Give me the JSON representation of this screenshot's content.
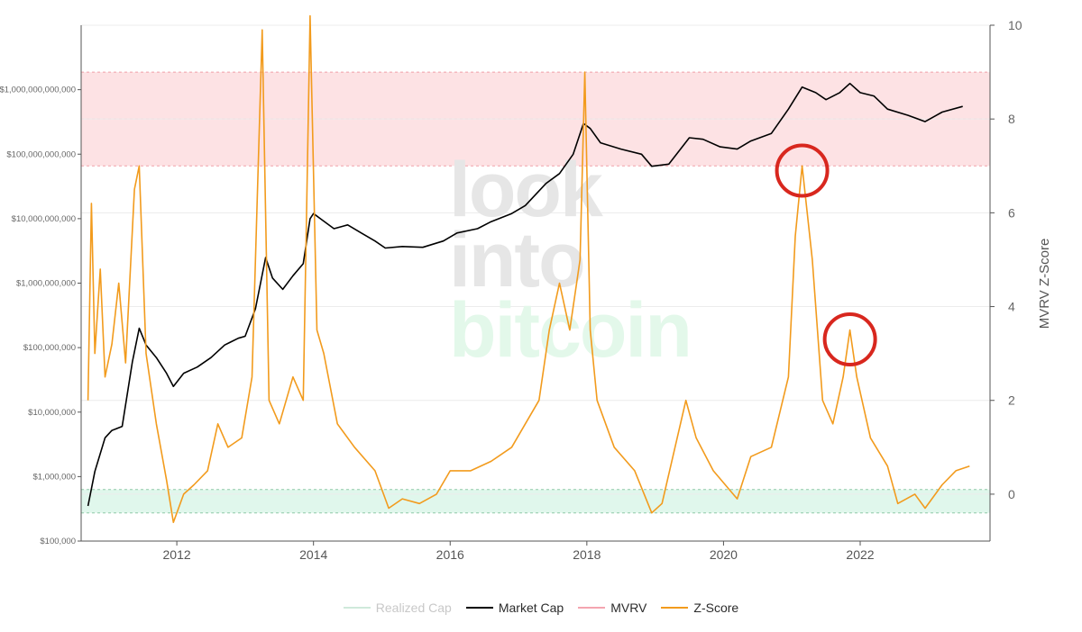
{
  "chart_data": {
    "type": "line",
    "title": "",
    "xlabel": "",
    "ylabel_left": "",
    "ylabel_right": "MVRV Z-Score",
    "x_range": [
      2010.6,
      2023.9
    ],
    "x_ticks": [
      2012,
      2014,
      2016,
      2018,
      2020,
      2022
    ],
    "y_left": {
      "scale": "log",
      "range": [
        100000,
        10000000000000
      ]
    },
    "y_left_ticks": [
      {
        "value": 100000,
        "label": "$100,000"
      },
      {
        "value": 1000000,
        "label": "$1,000,000"
      },
      {
        "value": 10000000,
        "label": "$10,000,000"
      },
      {
        "value": 100000000,
        "label": "$100,000,000"
      },
      {
        "value": 1000000000,
        "label": "$1,000,000,000"
      },
      {
        "value": 10000000000,
        "label": "$10,000,000,000"
      },
      {
        "value": 100000000000,
        "label": "$100,000,000,000"
      },
      {
        "value": 1000000000000,
        "label": "$1,000,000,000,000"
      }
    ],
    "y_right": {
      "scale": "linear",
      "range": [
        -1,
        10
      ]
    },
    "y_right_ticks": [
      0,
      2,
      4,
      6,
      8,
      10
    ],
    "bands": [
      {
        "name": "overvalued",
        "from": 7,
        "to": 9,
        "color": "#fde2e4",
        "border": "#f0a0a8"
      },
      {
        "name": "undervalued",
        "from": -0.4,
        "to": 0.1,
        "color": "#e0f7ec",
        "border": "#8fc9a8"
      }
    ],
    "grid": true,
    "legend_position": "bottom-center",
    "watermark": [
      "look",
      "into",
      "bitcoin"
    ],
    "annotations": [
      {
        "type": "circle",
        "x": 2021.15,
        "y": 6.9
      },
      {
        "type": "circle",
        "x": 2021.85,
        "y": 3.3
      }
    ],
    "series": [
      {
        "name": "Market Cap",
        "color": "#000000",
        "axis": "left",
        "points": [
          [
            2010.7,
            350000
          ],
          [
            2010.8,
            1200000
          ],
          [
            2010.95,
            4000000
          ],
          [
            2011.05,
            5200000
          ],
          [
            2011.2,
            6000000
          ],
          [
            2011.35,
            60000000
          ],
          [
            2011.45,
            200000000
          ],
          [
            2011.55,
            110000000
          ],
          [
            2011.7,
            70000000
          ],
          [
            2011.85,
            40000000
          ],
          [
            2011.95,
            25000000
          ],
          [
            2012.1,
            40000000
          ],
          [
            2012.3,
            50000000
          ],
          [
            2012.5,
            70000000
          ],
          [
            2012.7,
            110000000
          ],
          [
            2012.9,
            140000000
          ],
          [
            2013.0,
            150000000
          ],
          [
            2013.15,
            400000000
          ],
          [
            2013.3,
            2500000000
          ],
          [
            2013.4,
            1200000000
          ],
          [
            2013.55,
            800000000
          ],
          [
            2013.7,
            1300000000
          ],
          [
            2013.85,
            2000000000
          ],
          [
            2013.95,
            10000000000
          ],
          [
            2014.0,
            12000000000
          ],
          [
            2014.1,
            10000000000
          ],
          [
            2014.3,
            7000000000
          ],
          [
            2014.5,
            8000000000
          ],
          [
            2014.7,
            6000000000
          ],
          [
            2014.9,
            4500000000
          ],
          [
            2015.05,
            3500000000
          ],
          [
            2015.3,
            3700000000
          ],
          [
            2015.6,
            3600000000
          ],
          [
            2015.9,
            4500000000
          ],
          [
            2016.1,
            6000000000
          ],
          [
            2016.4,
            7000000000
          ],
          [
            2016.6,
            9000000000
          ],
          [
            2016.9,
            12000000000
          ],
          [
            2017.1,
            16000000000
          ],
          [
            2017.4,
            35000000000
          ],
          [
            2017.6,
            50000000000
          ],
          [
            2017.8,
            100000000000
          ],
          [
            2017.95,
            300000000000
          ],
          [
            2018.05,
            250000000000
          ],
          [
            2018.2,
            150000000000
          ],
          [
            2018.5,
            120000000000
          ],
          [
            2018.8,
            100000000000
          ],
          [
            2018.95,
            65000000000
          ],
          [
            2019.2,
            70000000000
          ],
          [
            2019.5,
            180000000000
          ],
          [
            2019.7,
            170000000000
          ],
          [
            2019.95,
            130000000000
          ],
          [
            2020.2,
            120000000000
          ],
          [
            2020.4,
            160000000000
          ],
          [
            2020.7,
            210000000000
          ],
          [
            2020.95,
            500000000000
          ],
          [
            2021.15,
            1100000000000
          ],
          [
            2021.35,
            900000000000
          ],
          [
            2021.5,
            700000000000
          ],
          [
            2021.7,
            900000000000
          ],
          [
            2021.85,
            1250000000000
          ],
          [
            2022.0,
            900000000000
          ],
          [
            2022.2,
            800000000000
          ],
          [
            2022.4,
            500000000000
          ],
          [
            2022.7,
            400000000000
          ],
          [
            2022.95,
            320000000000
          ],
          [
            2023.2,
            450000000000
          ],
          [
            2023.5,
            550000000000
          ]
        ]
      },
      {
        "name": "Z-Score",
        "color": "#f29b1d",
        "axis": "right",
        "points": [
          [
            2010.7,
            2.0
          ],
          [
            2010.75,
            6.2
          ],
          [
            2010.8,
            3.0
          ],
          [
            2010.88,
            4.8
          ],
          [
            2010.95,
            2.5
          ],
          [
            2011.05,
            3.2
          ],
          [
            2011.15,
            4.5
          ],
          [
            2011.25,
            2.8
          ],
          [
            2011.38,
            6.5
          ],
          [
            2011.45,
            7.0
          ],
          [
            2011.55,
            3.0
          ],
          [
            2011.7,
            1.5
          ],
          [
            2011.85,
            0.3
          ],
          [
            2011.95,
            -0.6
          ],
          [
            2012.1,
            0.0
          ],
          [
            2012.25,
            0.2
          ],
          [
            2012.45,
            0.5
          ],
          [
            2012.6,
            1.5
          ],
          [
            2012.75,
            1.0
          ],
          [
            2012.95,
            1.2
          ],
          [
            2013.1,
            2.5
          ],
          [
            2013.25,
            9.9
          ],
          [
            2013.35,
            2.0
          ],
          [
            2013.5,
            1.5
          ],
          [
            2013.7,
            2.5
          ],
          [
            2013.85,
            2.0
          ],
          [
            2013.95,
            10.2
          ],
          [
            2014.05,
            3.5
          ],
          [
            2014.15,
            3.0
          ],
          [
            2014.35,
            1.5
          ],
          [
            2014.6,
            1.0
          ],
          [
            2014.9,
            0.5
          ],
          [
            2015.1,
            -0.3
          ],
          [
            2015.3,
            -0.1
          ],
          [
            2015.55,
            -0.2
          ],
          [
            2015.8,
            0.0
          ],
          [
            2016.0,
            0.5
          ],
          [
            2016.3,
            0.5
          ],
          [
            2016.6,
            0.7
          ],
          [
            2016.9,
            1.0
          ],
          [
            2017.1,
            1.5
          ],
          [
            2017.3,
            2.0
          ],
          [
            2017.45,
            3.5
          ],
          [
            2017.6,
            4.5
          ],
          [
            2017.75,
            3.5
          ],
          [
            2017.9,
            5.0
          ],
          [
            2017.97,
            9.0
          ],
          [
            2018.05,
            3.5
          ],
          [
            2018.15,
            2.0
          ],
          [
            2018.4,
            1.0
          ],
          [
            2018.7,
            0.5
          ],
          [
            2018.95,
            -0.4
          ],
          [
            2019.1,
            -0.2
          ],
          [
            2019.45,
            2.0
          ],
          [
            2019.6,
            1.2
          ],
          [
            2019.85,
            0.5
          ],
          [
            2020.2,
            -0.1
          ],
          [
            2020.4,
            0.8
          ],
          [
            2020.7,
            1.0
          ],
          [
            2020.95,
            2.5
          ],
          [
            2021.05,
            5.5
          ],
          [
            2021.15,
            7.0
          ],
          [
            2021.3,
            5.0
          ],
          [
            2021.45,
            2.0
          ],
          [
            2021.6,
            1.5
          ],
          [
            2021.75,
            2.5
          ],
          [
            2021.85,
            3.5
          ],
          [
            2021.95,
            2.5
          ],
          [
            2022.15,
            1.2
          ],
          [
            2022.4,
            0.6
          ],
          [
            2022.55,
            -0.2
          ],
          [
            2022.8,
            0.0
          ],
          [
            2022.95,
            -0.3
          ],
          [
            2023.2,
            0.2
          ],
          [
            2023.4,
            0.5
          ],
          [
            2023.6,
            0.6
          ]
        ]
      }
    ],
    "legend": [
      {
        "name": "Realized Cap",
        "color": "#cfe9db",
        "dim": true
      },
      {
        "name": "Market Cap",
        "color": "#000000",
        "dim": false
      },
      {
        "name": "MVRV",
        "color": "#f4a5b0",
        "dim": false
      },
      {
        "name": "Z-Score",
        "color": "#f29b1d",
        "dim": false
      }
    ]
  }
}
